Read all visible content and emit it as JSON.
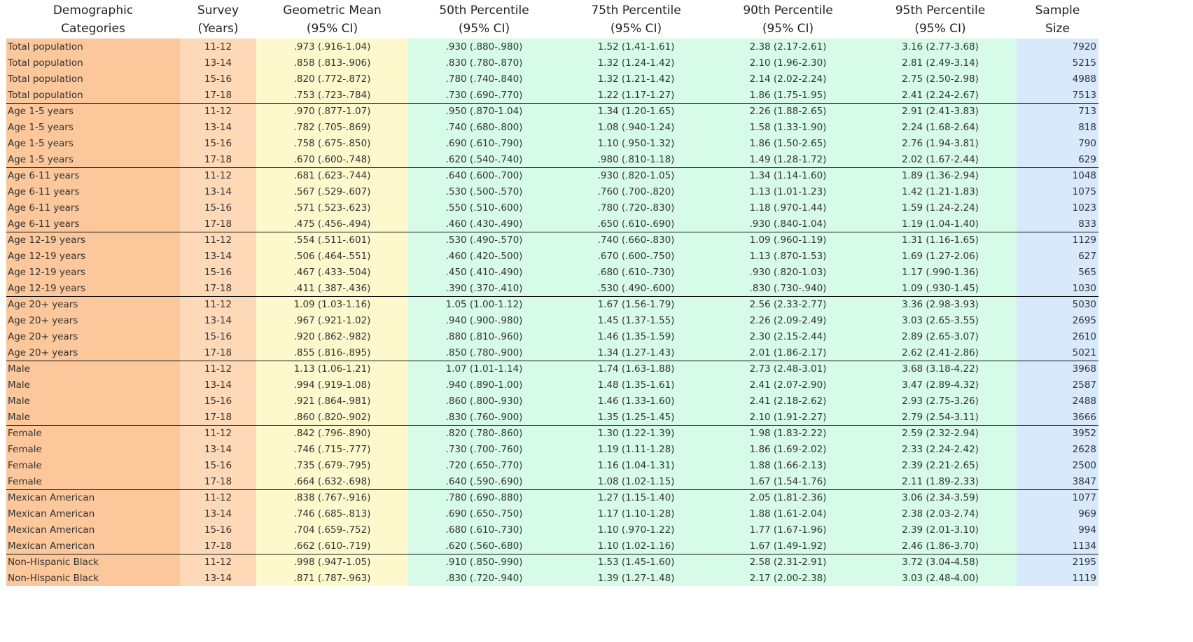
{
  "headers": [
    {
      "line1": "Demographic",
      "line2": "Categories"
    },
    {
      "line1": "Survey",
      "line2": "(Years)"
    },
    {
      "line1": "Geometric Mean",
      "line2": "(95% CI)"
    },
    {
      "line1": "50th Percentile",
      "line2": "(95% CI)"
    },
    {
      "line1": "75th Percentile",
      "line2": "(95% CI)"
    },
    {
      "line1": "90th Percentile",
      "line2": "(95% CI)"
    },
    {
      "line1": "95th Percentile",
      "line2": "(95% CI)"
    },
    {
      "line1": "Sample",
      "line2": "Size"
    }
  ],
  "colors": {
    "category": "#fbc79b",
    "survey": "#fdd9b7",
    "geometric_mean": "#fef9cd",
    "percentiles": "#d7fbe9",
    "sample_size": "#d7e9fb"
  },
  "rows": [
    [
      "Total population",
      "11-12",
      ".973 (.916-1.04)",
      ".930 (.880-.980)",
      "1.52 (1.41-1.61)",
      "2.38 (2.17-2.61)",
      "3.16 (2.77-3.68)",
      "7920"
    ],
    [
      "Total population",
      "13-14",
      ".858 (.813-.906)",
      ".830 (.780-.870)",
      "1.32 (1.24-1.42)",
      "2.10 (1.96-2.30)",
      "2.81 (2.49-3.14)",
      "5215"
    ],
    [
      "Total population",
      "15-16",
      ".820 (.772-.872)",
      ".780 (.740-.840)",
      "1.32 (1.21-1.42)",
      "2.14 (2.02-2.24)",
      "2.75 (2.50-2.98)",
      "4988"
    ],
    [
      "Total population",
      "17-18",
      ".753 (.723-.784)",
      ".730 (.690-.770)",
      "1.22 (1.17-1.27)",
      "1.86 (1.75-1.95)",
      "2.41 (2.24-2.67)",
      "7513"
    ],
    [
      "Age 1-5 years",
      "11-12",
      ".970 (.877-1.07)",
      ".950 (.870-1.04)",
      "1.34 (1.20-1.65)",
      "2.26 (1.88-2.65)",
      "2.91 (2.41-3.83)",
      "713"
    ],
    [
      "Age 1-5 years",
      "13-14",
      ".782 (.705-.869)",
      ".740 (.680-.800)",
      "1.08 (.940-1.24)",
      "1.58 (1.33-1.90)",
      "2.24 (1.68-2.64)",
      "818"
    ],
    [
      "Age 1-5 years",
      "15-16",
      ".758 (.675-.850)",
      ".690 (.610-.790)",
      "1.10 (.950-1.32)",
      "1.86 (1.50-2.65)",
      "2.76 (1.94-3.81)",
      "790"
    ],
    [
      "Age 1-5 years",
      "17-18",
      ".670 (.600-.748)",
      ".620 (.540-.740)",
      ".980 (.810-1.18)",
      "1.49 (1.28-1.72)",
      "2.02 (1.67-2.44)",
      "629"
    ],
    [
      "Age 6-11 years",
      "11-12",
      ".681 (.623-.744)",
      ".640 (.600-.700)",
      ".930 (.820-1.05)",
      "1.34 (1.14-1.60)",
      "1.89 (1.36-2.94)",
      "1048"
    ],
    [
      "Age 6-11 years",
      "13-14",
      ".567 (.529-.607)",
      ".530 (.500-.570)",
      ".760 (.700-.820)",
      "1.13 (1.01-1.23)",
      "1.42 (1.21-1.83)",
      "1075"
    ],
    [
      "Age 6-11 years",
      "15-16",
      ".571 (.523-.623)",
      ".550 (.510-.600)",
      ".780 (.720-.830)",
      "1.18 (.970-1.44)",
      "1.59 (1.24-2.24)",
      "1023"
    ],
    [
      "Age 6-11 years",
      "17-18",
      ".475 (.456-.494)",
      ".460 (.430-.490)",
      ".650 (.610-.690)",
      ".930 (.840-1.04)",
      "1.19 (1.04-1.40)",
      "833"
    ],
    [
      "Age 12-19 years",
      "11-12",
      ".554 (.511-.601)",
      ".530 (.490-.570)",
      ".740 (.660-.830)",
      "1.09 (.960-1.19)",
      "1.31 (1.16-1.65)",
      "1129"
    ],
    [
      "Age 12-19 years",
      "13-14",
      ".506 (.464-.551)",
      ".460 (.420-.500)",
      ".670 (.600-.750)",
      "1.13 (.870-1.53)",
      "1.69 (1.27-2.06)",
      "627"
    ],
    [
      "Age 12-19 years",
      "15-16",
      ".467 (.433-.504)",
      ".450 (.410-.490)",
      ".680 (.610-.730)",
      ".930 (.820-1.03)",
      "1.17 (.990-1.36)",
      "565"
    ],
    [
      "Age 12-19 years",
      "17-18",
      ".411 (.387-.436)",
      ".390 (.370-.410)",
      ".530 (.490-.600)",
      ".830 (.730-.940)",
      "1.09 (.930-1.45)",
      "1030"
    ],
    [
      "Age 20+ years",
      "11-12",
      "1.09 (1.03-1.16)",
      "1.05 (1.00-1.12)",
      "1.67 (1.56-1.79)",
      "2.56 (2.33-2.77)",
      "3.36 (2.98-3.93)",
      "5030"
    ],
    [
      "Age 20+ years",
      "13-14",
      ".967 (.921-1.02)",
      ".940 (.900-.980)",
      "1.45 (1.37-1.55)",
      "2.26 (2.09-2.49)",
      "3.03 (2.65-3.55)",
      "2695"
    ],
    [
      "Age 20+ years",
      "15-16",
      ".920 (.862-.982)",
      ".880 (.810-.960)",
      "1.46 (1.35-1.59)",
      "2.30 (2.15-2.44)",
      "2.89 (2.65-3.07)",
      "2610"
    ],
    [
      "Age 20+ years",
      "17-18",
      ".855 (.816-.895)",
      ".850 (.780-.900)",
      "1.34 (1.27-1.43)",
      "2.01 (1.86-2.17)",
      "2.62 (2.41-2.86)",
      "5021"
    ],
    [
      "Male",
      "11-12",
      "1.13 (1.06-1.21)",
      "1.07 (1.01-1.14)",
      "1.74 (1.63-1.88)",
      "2.73 (2.48-3.01)",
      "3.68 (3.18-4.22)",
      "3968"
    ],
    [
      "Male",
      "13-14",
      ".994 (.919-1.08)",
      ".940 (.890-1.00)",
      "1.48 (1.35-1.61)",
      "2.41 (2.07-2.90)",
      "3.47 (2.89-4.32)",
      "2587"
    ],
    [
      "Male",
      "15-16",
      ".921 (.864-.981)",
      ".860 (.800-.930)",
      "1.46 (1.33-1.60)",
      "2.41 (2.18-2.62)",
      "2.93 (2.75-3.26)",
      "2488"
    ],
    [
      "Male",
      "17-18",
      ".860 (.820-.902)",
      ".830 (.760-.900)",
      "1.35 (1.25-1.45)",
      "2.10 (1.91-2.27)",
      "2.79 (2.54-3.11)",
      "3666"
    ],
    [
      "Female",
      "11-12",
      ".842 (.796-.890)",
      ".820 (.780-.860)",
      "1.30 (1.22-1.39)",
      "1.98 (1.83-2.22)",
      "2.59 (2.32-2.94)",
      "3952"
    ],
    [
      "Female",
      "13-14",
      ".746 (.715-.777)",
      ".730 (.700-.760)",
      "1.19 (1.11-1.28)",
      "1.86 (1.69-2.02)",
      "2.33 (2.24-2.42)",
      "2628"
    ],
    [
      "Female",
      "15-16",
      ".735 (.679-.795)",
      ".720 (.650-.770)",
      "1.16 (1.04-1.31)",
      "1.88 (1.66-2.13)",
      "2.39 (2.21-2.65)",
      "2500"
    ],
    [
      "Female",
      "17-18",
      ".664 (.632-.698)",
      ".640 (.590-.690)",
      "1.08 (1.02-1.15)",
      "1.67 (1.54-1.76)",
      "2.11 (1.89-2.33)",
      "3847"
    ],
    [
      "Mexican American",
      "11-12",
      ".838 (.767-.916)",
      ".780 (.690-.880)",
      "1.27 (1.15-1.40)",
      "2.05 (1.81-2.36)",
      "3.06 (2.34-3.59)",
      "1077"
    ],
    [
      "Mexican American",
      "13-14",
      ".746 (.685-.813)",
      ".690 (.650-.750)",
      "1.17 (1.10-1.28)",
      "1.88 (1.61-2.04)",
      "2.38 (2.03-2.74)",
      "969"
    ],
    [
      "Mexican American",
      "15-16",
      ".704 (.659-.752)",
      ".680 (.610-.730)",
      "1.10 (.970-1.22)",
      "1.77 (1.67-1.96)",
      "2.39 (2.01-3.10)",
      "994"
    ],
    [
      "Mexican American",
      "17-18",
      ".662 (.610-.719)",
      ".620 (.560-.680)",
      "1.10 (1.02-1.16)",
      "1.67 (1.49-1.92)",
      "2.46 (1.86-3.70)",
      "1134"
    ],
    [
      "Non-Hispanic Black",
      "11-12",
      ".998 (.947-1.05)",
      ".910 (.850-.990)",
      "1.53 (1.45-1.60)",
      "2.58 (2.31-2.91)",
      "3.72 (3.04-4.58)",
      "2195"
    ],
    [
      "Non-Hispanic Black",
      "13-14",
      ".871 (.787-.963)",
      ".830 (.720-.940)",
      "1.39 (1.27-1.48)",
      "2.17 (2.00-2.38)",
      "3.03 (2.48-4.00)",
      "1119"
    ]
  ]
}
